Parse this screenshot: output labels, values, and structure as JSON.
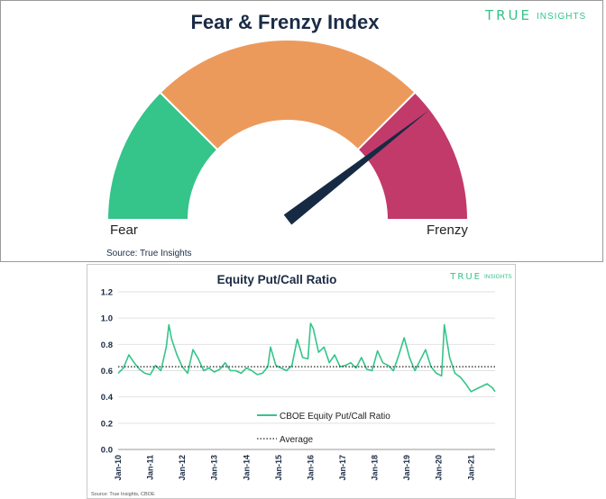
{
  "gauge": {
    "title": "Fear & Frenzy Index",
    "brand_left": "TRUE",
    "brand_right": "INSIGHTS",
    "label_left": "Fear",
    "label_right": "Frenzy",
    "source": "Source: True Insights",
    "colors": {
      "fear": "#35c48a",
      "neutral": "#ec9a5c",
      "frenzy": "#c23a6a",
      "needle": "#172a44"
    },
    "chart_data": {
      "type": "gauge",
      "segments": [
        {
          "name": "Fear",
          "from": 0,
          "to": 0.25,
          "color": "#35c48a"
        },
        {
          "name": "",
          "from": 0.25,
          "to": 0.75,
          "color": "#ec9a5c"
        },
        {
          "name": "Frenzy",
          "from": 0.75,
          "to": 1.0,
          "color": "#c23a6a"
        }
      ],
      "needle_value": 0.79
    }
  },
  "ratio": {
    "title": "Equity Put/Call Ratio",
    "brand_left": "TRUE",
    "brand_right": "INSIGHTS",
    "source": "Source: True Insights, CBOE",
    "legend": {
      "series": "CBOE Equity Put/Call Ratio",
      "average": "Average"
    },
    "colors": {
      "series": "#35c48a",
      "average": "#222222"
    },
    "chart_data": {
      "type": "line",
      "title": "Equity Put/Call Ratio",
      "ylim": [
        0.0,
        1.2
      ],
      "yticks": [
        "0.0",
        "0.2",
        "0.4",
        "0.6",
        "0.8",
        "1.0",
        "1.2"
      ],
      "xticks": [
        "Jan-10",
        "Jan-11",
        "Jan-12",
        "Jan-13",
        "Jan-14",
        "Jan-15",
        "Jan-16",
        "Jan-17",
        "Jan-18",
        "Jan-19",
        "Jan-20",
        "Jan-21"
      ],
      "x_range": [
        "2010-01",
        "2021-10"
      ],
      "average": 0.63,
      "grid": true,
      "legend_position": "bottom-center",
      "series": [
        {
          "name": "CBOE Equity Put/Call Ratio",
          "x": [
            "2010-01",
            "2010-03",
            "2010-05",
            "2010-07",
            "2010-09",
            "2010-11",
            "2011-01",
            "2011-03",
            "2011-05",
            "2011-07",
            "2011-08",
            "2011-09",
            "2011-11",
            "2012-01",
            "2012-03",
            "2012-05",
            "2012-07",
            "2012-09",
            "2012-11",
            "2013-01",
            "2013-03",
            "2013-05",
            "2013-07",
            "2013-09",
            "2013-11",
            "2014-01",
            "2014-03",
            "2014-05",
            "2014-07",
            "2014-09",
            "2014-10",
            "2014-12",
            "2015-02",
            "2015-04",
            "2015-06",
            "2015-08",
            "2015-10",
            "2015-12",
            "2016-01",
            "2016-02",
            "2016-04",
            "2016-06",
            "2016-08",
            "2016-10",
            "2016-12",
            "2017-02",
            "2017-04",
            "2017-06",
            "2017-08",
            "2017-10",
            "2017-12",
            "2018-02",
            "2018-04",
            "2018-06",
            "2018-08",
            "2018-10",
            "2018-12",
            "2019-02",
            "2019-04",
            "2019-06",
            "2019-08",
            "2019-10",
            "2019-12",
            "2020-02",
            "2020-03",
            "2020-05",
            "2020-07",
            "2020-09",
            "2020-11",
            "2021-01",
            "2021-03",
            "2021-05",
            "2021-07",
            "2021-09",
            "2021-10"
          ],
          "values": [
            0.58,
            0.62,
            0.72,
            0.66,
            0.61,
            0.58,
            0.57,
            0.64,
            0.6,
            0.78,
            0.95,
            0.84,
            0.72,
            0.63,
            0.58,
            0.76,
            0.69,
            0.6,
            0.62,
            0.59,
            0.61,
            0.66,
            0.6,
            0.6,
            0.58,
            0.62,
            0.6,
            0.57,
            0.58,
            0.63,
            0.78,
            0.64,
            0.62,
            0.6,
            0.64,
            0.84,
            0.7,
            0.69,
            0.96,
            0.92,
            0.74,
            0.78,
            0.66,
            0.72,
            0.63,
            0.64,
            0.66,
            0.62,
            0.7,
            0.61,
            0.6,
            0.75,
            0.66,
            0.64,
            0.6,
            0.72,
            0.85,
            0.7,
            0.6,
            0.68,
            0.76,
            0.63,
            0.58,
            0.56,
            0.95,
            0.7,
            0.58,
            0.55,
            0.5,
            0.44,
            0.46,
            0.48,
            0.5,
            0.47,
            0.44
          ]
        }
      ]
    }
  }
}
